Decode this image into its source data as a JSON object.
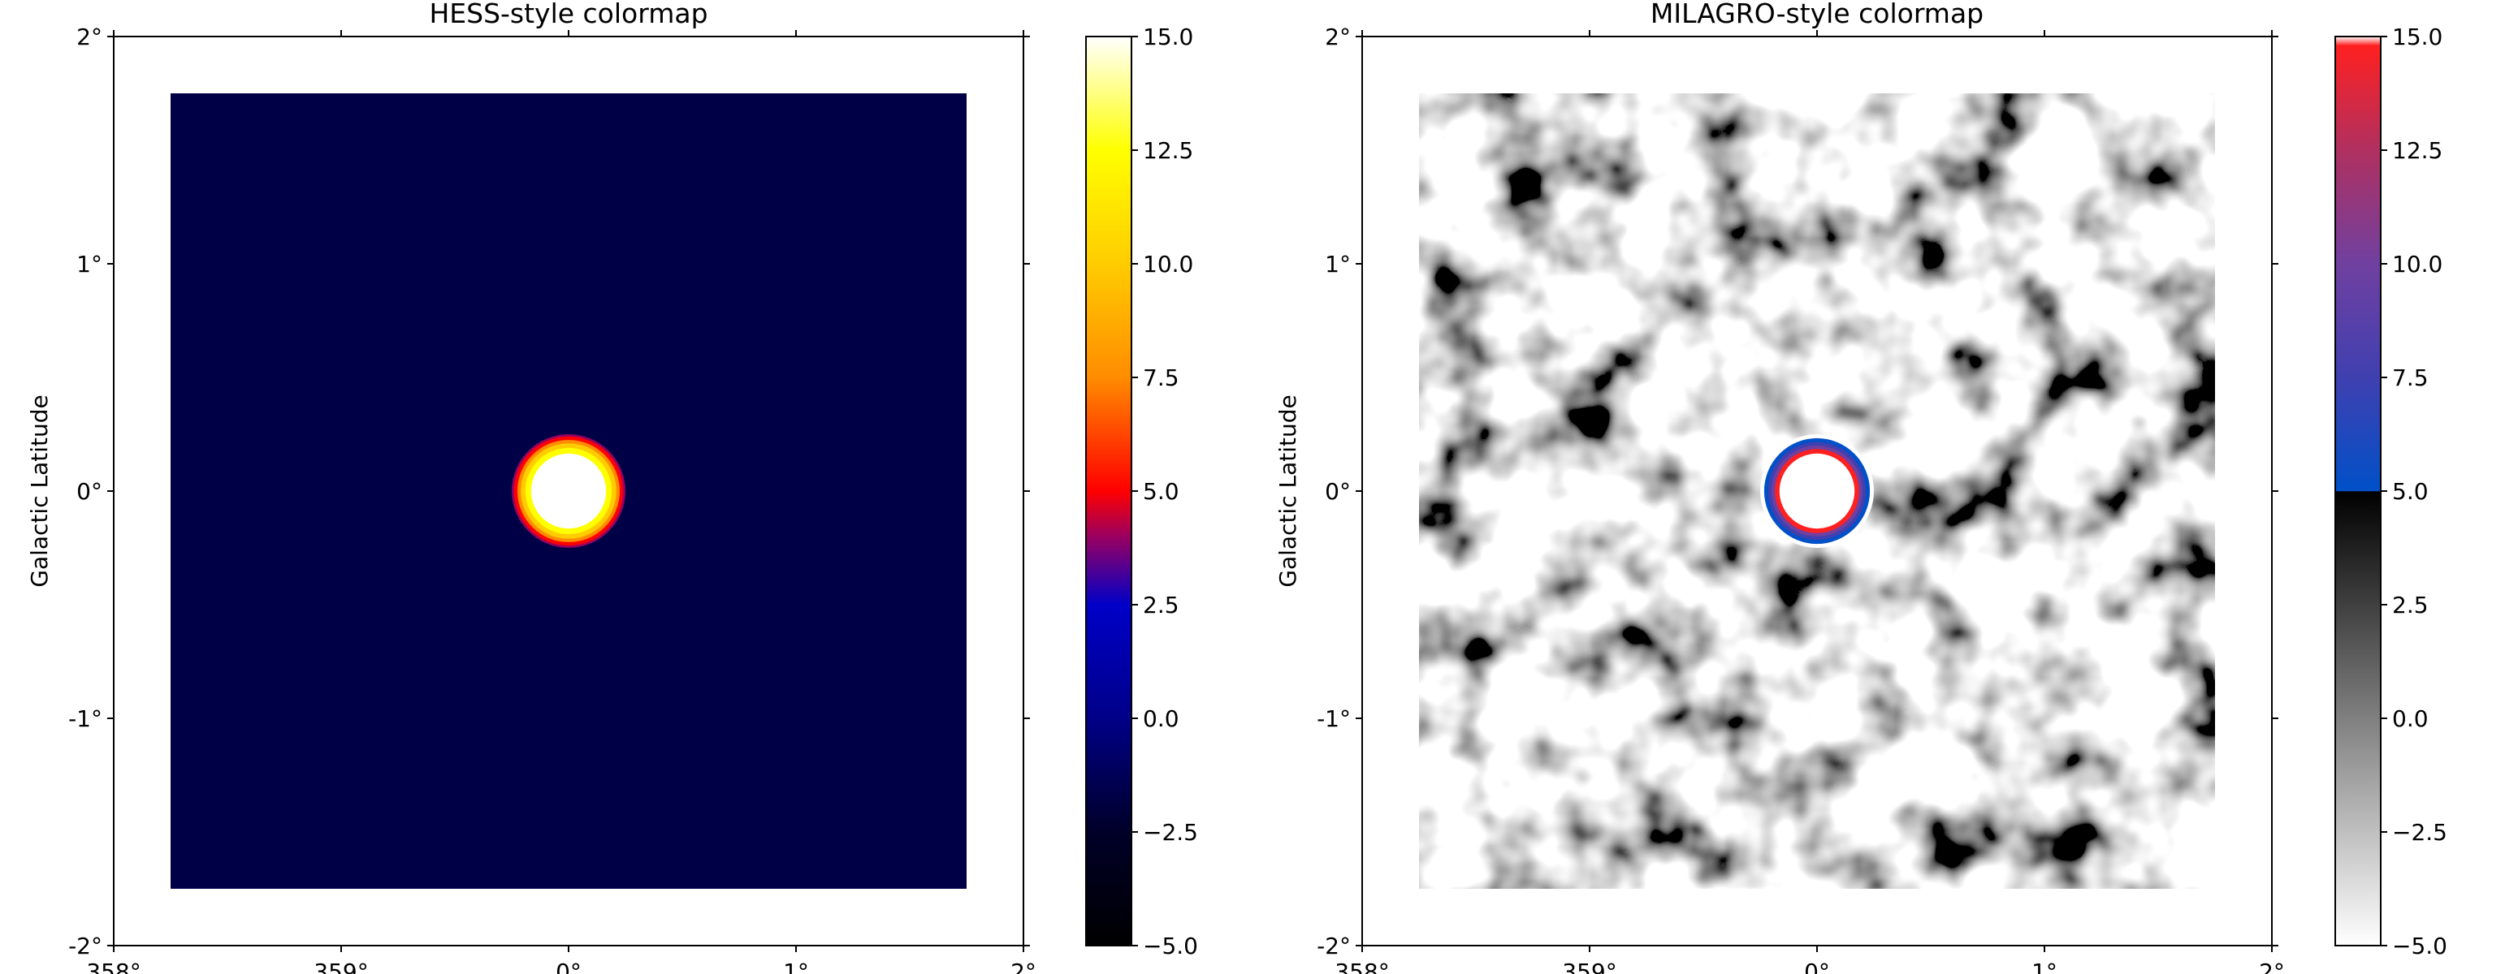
{
  "chart_data": [
    {
      "type": "heatmap",
      "title": "HESS-style colormap",
      "xlabel": "",
      "ylabel": "Galactic Latitude",
      "x_ticks": [
        "358°",
        "359°",
        "0°",
        "1°",
        "2°"
      ],
      "y_ticks": [
        "2°",
        "1°",
        "0°",
        "-1°",
        "-2°"
      ],
      "x_tick_values": [
        358,
        359,
        360,
        361,
        362
      ],
      "y_tick_values": [
        2,
        1,
        0,
        -1,
        -2
      ],
      "xlim": [
        358,
        362
      ],
      "ylim": [
        -2,
        2
      ],
      "map_extent": {
        "x": [
          358.25,
          361.75
        ],
        "y": [
          -1.75,
          1.75
        ]
      },
      "colormap": "HESS",
      "colormap_stops": [
        [
          -5.0,
          "#000000"
        ],
        [
          -2.5,
          "#000028"
        ],
        [
          0.0,
          "#000088"
        ],
        [
          2.5,
          "#0000c8"
        ],
        [
          4.0,
          "#9a0060"
        ],
        [
          5.0,
          "#ff0000"
        ],
        [
          7.5,
          "#ff8c00"
        ],
        [
          10.0,
          "#ffcc00"
        ],
        [
          12.5,
          "#ffff00"
        ],
        [
          15.0,
          "#ffffff"
        ]
      ],
      "colorbar": {
        "ticks": [
          "15.0",
          "12.5",
          "10.0",
          "7.5",
          "5.0",
          "2.5",
          "0.0",
          "−2.5",
          "−5.0"
        ],
        "tick_values": [
          15,
          12.5,
          10,
          7.5,
          5,
          2.5,
          0,
          -2.5,
          -5
        ],
        "range": [
          -5,
          15
        ]
      },
      "background_level": 0.5,
      "source": {
        "x": 360.0,
        "y": 0.0,
        "radius_deg": 0.25,
        "peak": 15
      }
    },
    {
      "type": "heatmap",
      "title": "MILAGRO-style colormap",
      "xlabel": "",
      "ylabel": "Galactic Latitude",
      "x_ticks": [
        "358°",
        "359°",
        "0°",
        "1°",
        "2°"
      ],
      "y_ticks": [
        "2°",
        "1°",
        "0°",
        "-1°",
        "-2°"
      ],
      "x_tick_values": [
        358,
        359,
        360,
        361,
        362
      ],
      "y_tick_values": [
        2,
        1,
        0,
        -1,
        -2
      ],
      "xlim": [
        358,
        362
      ],
      "ylim": [
        -2,
        2
      ],
      "map_extent": {
        "x": [
          358.25,
          361.75
        ],
        "y": [
          -1.75,
          1.75
        ]
      },
      "colormap": "MILAGRO",
      "colormap_stops": [
        [
          -5.0,
          "#ffffff"
        ],
        [
          4.99,
          "#000000"
        ],
        [
          5.0,
          "#0050c8"
        ],
        [
          7.5,
          "#4040b0"
        ],
        [
          10.0,
          "#7040a0"
        ],
        [
          12.5,
          "#b03060"
        ],
        [
          14.8,
          "#ff2020"
        ],
        [
          15.0,
          "#ffffff"
        ]
      ],
      "colorbar": {
        "ticks": [
          "15.0",
          "12.5",
          "10.0",
          "7.5",
          "5.0",
          "2.5",
          "0.0",
          "−2.5",
          "−5.0"
        ],
        "tick_values": [
          15,
          12.5,
          10,
          7.5,
          5,
          2.5,
          0,
          -2.5,
          -5
        ],
        "range": [
          -5,
          15
        ]
      },
      "background_level": 0.0,
      "source": {
        "x": 360.0,
        "y": 0.0,
        "radius_deg": 0.25,
        "peak": 15
      }
    }
  ]
}
